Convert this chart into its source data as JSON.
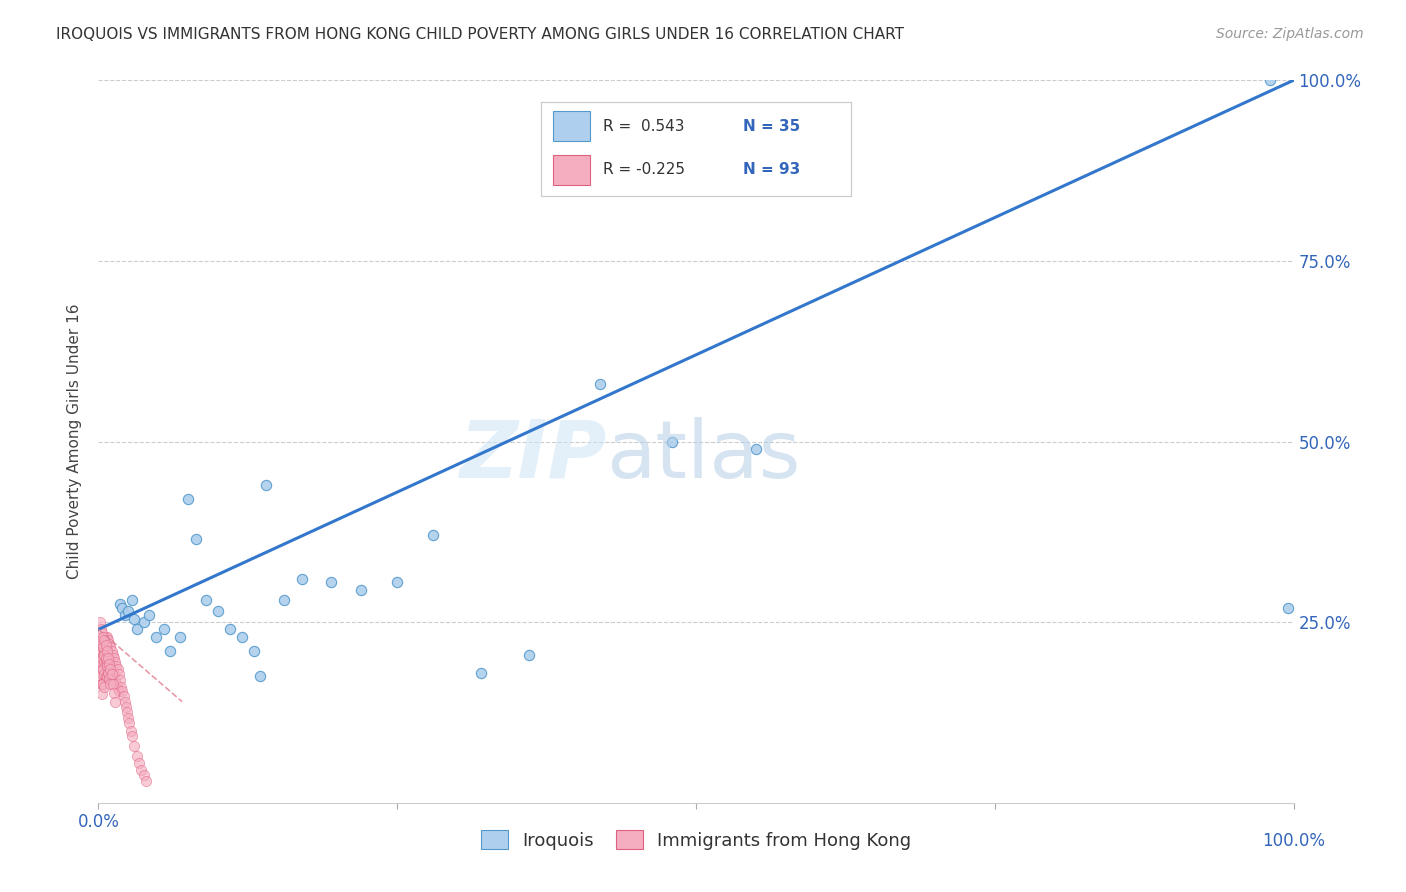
{
  "title": "IROQUOIS VS IMMIGRANTS FROM HONG KONG CHILD POVERTY AMONG GIRLS UNDER 16 CORRELATION CHART",
  "source": "Source: ZipAtlas.com",
  "ylabel": "Child Poverty Among Girls Under 16",
  "xlim": [
    0,
    1
  ],
  "ylim": [
    0,
    1
  ],
  "blue_color": "#aecfed",
  "blue_edge": "#5599cc",
  "pink_color": "#f4aec0",
  "pink_edge": "#e06080",
  "line_blue_color": "#3377cc",
  "line_pink_color": "#e08090",
  "iroquois_x": [
    0.018,
    0.02,
    0.022,
    0.025,
    0.028,
    0.03,
    0.032,
    0.038,
    0.042,
    0.048,
    0.055,
    0.06,
    0.068,
    0.075,
    0.082,
    0.09,
    0.1,
    0.11,
    0.12,
    0.13,
    0.14,
    0.155,
    0.17,
    0.195,
    0.22,
    0.25,
    0.28,
    0.32,
    0.36,
    0.42,
    0.48,
    0.55,
    0.98,
    0.995,
    0.135
  ],
  "iroquois_y": [
    0.275,
    0.27,
    0.26,
    0.265,
    0.28,
    0.255,
    0.24,
    0.25,
    0.26,
    0.23,
    0.24,
    0.21,
    0.23,
    0.42,
    0.365,
    0.28,
    0.265,
    0.24,
    0.23,
    0.21,
    0.44,
    0.28,
    0.31,
    0.305,
    0.295,
    0.305,
    0.37,
    0.18,
    0.205,
    0.58,
    0.5,
    0.49,
    1.0,
    0.27,
    0.175
  ],
  "hk_x": [
    0.001,
    0.001,
    0.001,
    0.002,
    0.002,
    0.002,
    0.002,
    0.003,
    0.003,
    0.003,
    0.003,
    0.003,
    0.004,
    0.004,
    0.004,
    0.004,
    0.005,
    0.005,
    0.005,
    0.005,
    0.005,
    0.006,
    0.006,
    0.006,
    0.006,
    0.007,
    0.007,
    0.007,
    0.007,
    0.008,
    0.008,
    0.008,
    0.009,
    0.009,
    0.009,
    0.01,
    0.01,
    0.01,
    0.011,
    0.011,
    0.011,
    0.012,
    0.012,
    0.013,
    0.013,
    0.014,
    0.014,
    0.015,
    0.015,
    0.016,
    0.016,
    0.017,
    0.017,
    0.018,
    0.019,
    0.02,
    0.021,
    0.022,
    0.023,
    0.024,
    0.025,
    0.026,
    0.027,
    0.028,
    0.03,
    0.032,
    0.034,
    0.036,
    0.038,
    0.04,
    0.001,
    0.002,
    0.002,
    0.003,
    0.003,
    0.004,
    0.004,
    0.005,
    0.005,
    0.006,
    0.006,
    0.007,
    0.007,
    0.008,
    0.008,
    0.009,
    0.009,
    0.01,
    0.01,
    0.011,
    0.012,
    0.013,
    0.014
  ],
  "hk_y": [
    0.2,
    0.19,
    0.175,
    0.21,
    0.195,
    0.18,
    0.165,
    0.215,
    0.2,
    0.185,
    0.165,
    0.15,
    0.22,
    0.205,
    0.185,
    0.165,
    0.225,
    0.21,
    0.195,
    0.178,
    0.16,
    0.23,
    0.215,
    0.195,
    0.175,
    0.23,
    0.215,
    0.195,
    0.175,
    0.225,
    0.205,
    0.18,
    0.22,
    0.2,
    0.178,
    0.215,
    0.195,
    0.175,
    0.21,
    0.19,
    0.17,
    0.205,
    0.185,
    0.2,
    0.178,
    0.195,
    0.17,
    0.19,
    0.165,
    0.185,
    0.158,
    0.178,
    0.155,
    0.17,
    0.16,
    0.155,
    0.148,
    0.14,
    0.132,
    0.125,
    0.118,
    0.11,
    0.1,
    0.092,
    0.078,
    0.065,
    0.055,
    0.045,
    0.038,
    0.03,
    0.25,
    0.24,
    0.225,
    0.235,
    0.22,
    0.23,
    0.215,
    0.225,
    0.205,
    0.218,
    0.2,
    0.21,
    0.19,
    0.2,
    0.18,
    0.192,
    0.172,
    0.185,
    0.165,
    0.178,
    0.165,
    0.152,
    0.14
  ],
  "blue_trend_x": [
    0.0,
    1.0
  ],
  "blue_trend_y": [
    0.24,
    1.0
  ],
  "pink_trend_x": [
    0.0,
    0.07
  ],
  "pink_trend_y": [
    0.24,
    0.14
  ]
}
